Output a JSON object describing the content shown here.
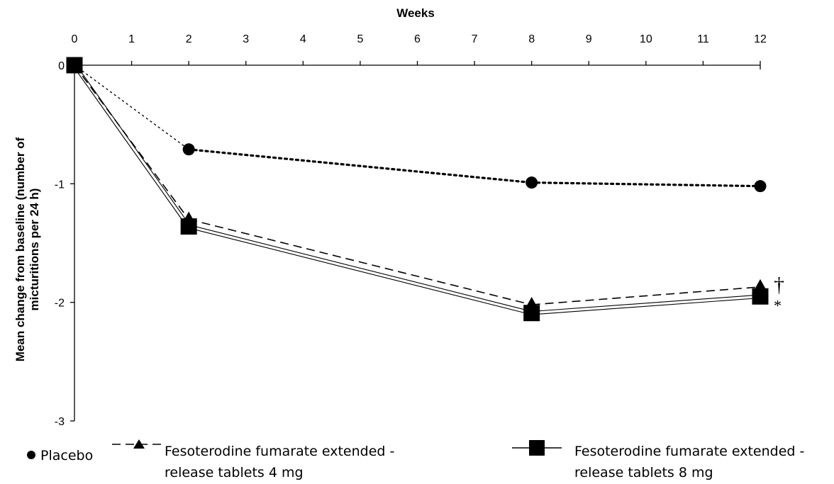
{
  "chart_data": {
    "type": "line",
    "title": "",
    "xlabel": "Weeks",
    "ylabel_lines": [
      "Mean change from baseline (number of",
      "micturitions per 24 h)"
    ],
    "x_ticks": [
      0,
      1,
      2,
      3,
      4,
      5,
      6,
      7,
      8,
      9,
      10,
      11,
      12
    ],
    "y_ticks": [
      0,
      -1,
      -2,
      -3
    ],
    "xlim": [
      0,
      12
    ],
    "ylim": [
      -3,
      0
    ],
    "x_axis_position": "top",
    "grid": false,
    "legend_position": "bottom",
    "series": [
      {
        "name": "Placebo",
        "marker": "circle",
        "line_style": "dotted",
        "x": [
          0,
          2,
          8,
          12
        ],
        "y": [
          0,
          -0.71,
          -0.99,
          -1.02
        ]
      },
      {
        "name": "Fesoterodine fumarate extended-release tablets 4 mg",
        "legend_lines": [
          "Fesoterodine fumarate extended -",
          "release tablets 4 mg"
        ],
        "marker": "triangle",
        "line_style": "dashed",
        "x": [
          0,
          2,
          8,
          12
        ],
        "y": [
          0,
          -1.3,
          -2.02,
          -1.87
        ]
      },
      {
        "name": "Fesoterodine fumarate extended-release tablets 8 mg",
        "legend_lines": [
          "Fesoterodine fumarate extended -",
          "release tablets 8 mg"
        ],
        "marker": "square",
        "line_style": "double",
        "x": [
          0,
          2,
          8,
          12
        ],
        "y": [
          0,
          -1.36,
          -2.09,
          -1.95
        ]
      }
    ],
    "annotations": [
      {
        "text": "†",
        "x": 12,
        "y": -1.85,
        "series": "Fesoterodine fumarate extended-release tablets 4 mg"
      },
      {
        "text": "*",
        "x": 12,
        "y": -2.0,
        "series": "Fesoterodine fumarate extended-release tablets 8 mg"
      }
    ]
  }
}
